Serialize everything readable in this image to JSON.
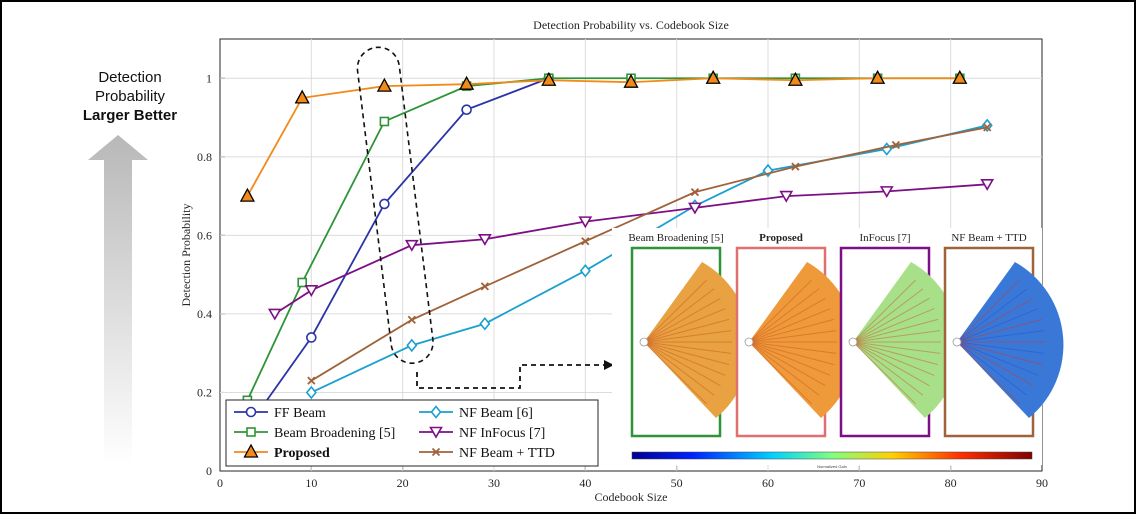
{
  "side_label": {
    "line1": "Detection",
    "line2": "Probability",
    "line3": "Larger Better"
  },
  "colors": {
    "ff_beam": "#2b35a8",
    "beam_broadening": "#2e9437",
    "proposed": "#f28a1a",
    "nf_beam": "#1aa0cf",
    "nf_infocus": "#7d0f86",
    "nf_beam_ttd": "#a0623a"
  },
  "chart_data": {
    "type": "line",
    "title": "Detection Probability vs. Codebook Size",
    "xlabel": "Codebook Size",
    "ylabel": "Detection Probability",
    "xlim": [
      0,
      90
    ],
    "ylim": [
      0,
      1.1
    ],
    "xticks": [
      0,
      10,
      20,
      30,
      40,
      50,
      60,
      70,
      80,
      90
    ],
    "yticks": [
      0,
      0.2,
      0.4,
      0.6,
      0.8,
      1
    ],
    "grid": true,
    "legend_position": "bottom-left",
    "series": [
      {
        "name": "FF Beam",
        "marker": "circle",
        "x": [
          3,
          10,
          18,
          27,
          36
        ],
        "y": [
          0.11,
          0.34,
          0.68,
          0.92,
          1.0
        ]
      },
      {
        "name": "Beam Broadening [5]",
        "marker": "square",
        "x": [
          3,
          9,
          18,
          27,
          36,
          45,
          54,
          63,
          72,
          81
        ],
        "y": [
          0.18,
          0.48,
          0.89,
          0.98,
          1.0,
          1.0,
          1.0,
          1.0,
          1.0,
          1.0
        ]
      },
      {
        "name": "Proposed",
        "marker": "triangle",
        "bold": true,
        "x": [
          3,
          9,
          18,
          27,
          36,
          45,
          54,
          63,
          72,
          81
        ],
        "y": [
          0.7,
          0.95,
          0.98,
          0.985,
          0.995,
          0.99,
          1.0,
          0.995,
          1.0,
          1.0
        ]
      },
      {
        "name": "NF Beam [6]",
        "marker": "diamond",
        "x": [
          10,
          21,
          29,
          40,
          52,
          60,
          73,
          84
        ],
        "y": [
          0.2,
          0.32,
          0.375,
          0.51,
          0.675,
          0.765,
          0.82,
          0.88
        ]
      },
      {
        "name": "NF InFocus [7]",
        "marker": "triangle-down",
        "x": [
          6,
          10,
          21,
          29,
          40,
          52,
          62,
          73,
          84
        ],
        "y": [
          0.4,
          0.46,
          0.575,
          0.59,
          0.635,
          0.67,
          0.7,
          0.712,
          0.73
        ]
      },
      {
        "name": "NF Beam + TTD",
        "marker": "x",
        "x": [
          10,
          21,
          29,
          40,
          52,
          63,
          74,
          84
        ],
        "y": [
          0.23,
          0.385,
          0.47,
          0.585,
          0.71,
          0.775,
          0.83,
          0.875
        ]
      }
    ],
    "inset": {
      "panels": [
        {
          "label": "Beam Broadening [5]",
          "border": "#2e9437",
          "fill": "#e8a242"
        },
        {
          "label": "Proposed",
          "border": "#e07070",
          "fill": "#ee9a3a"
        },
        {
          "label": "InFocus [7]",
          "border": "#7d0f86",
          "fill": "#a8e08a"
        },
        {
          "label": "NF Beam + TTD",
          "border": "#a0623a",
          "fill": "#3a78d8"
        }
      ],
      "colorbar_label": "Normalized Gain"
    }
  }
}
